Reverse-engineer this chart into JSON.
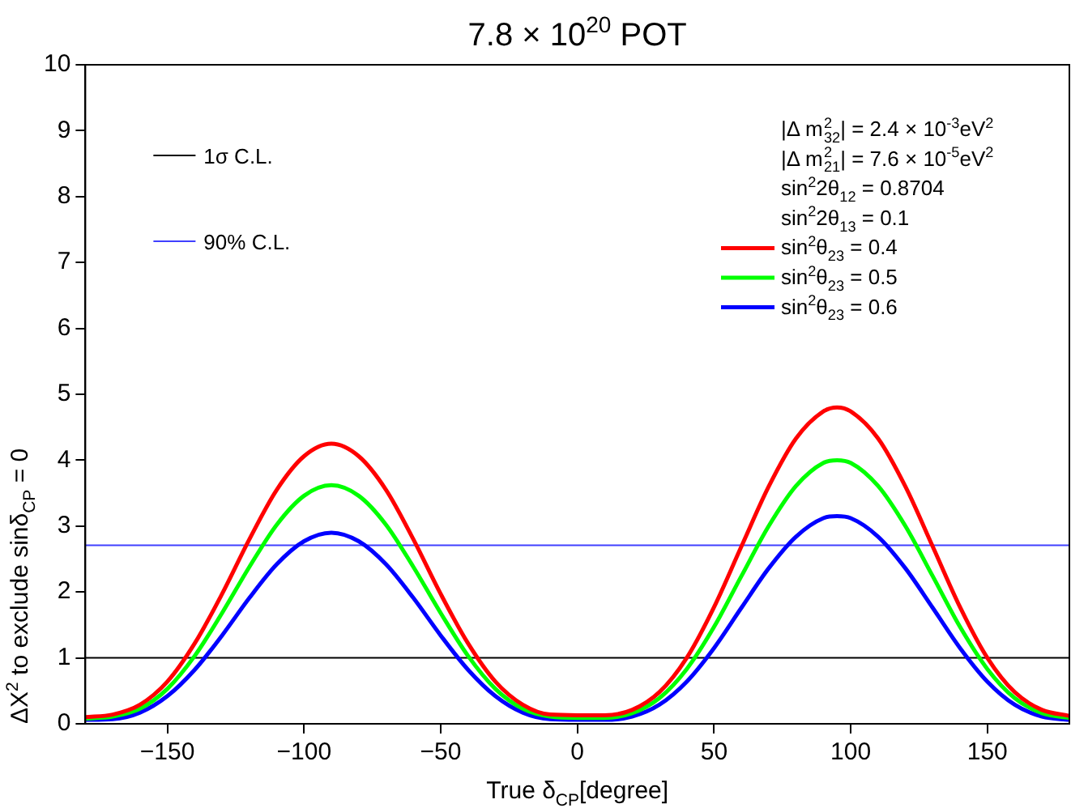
{
  "chart_data": {
    "type": "line",
    "title": "7.8 × 10$^{20}$ POT",
    "xlabel": "True δ$_{CP}$[degree]",
    "ylabel": "ΔΧ$^{2}$ to exclude sinδ$_{CP}$ = 0",
    "x": [
      -180,
      -170,
      -160,
      -150,
      -140,
      -130,
      -120,
      -110,
      -100,
      -90,
      -80,
      -70,
      -60,
      -50,
      -40,
      -30,
      -20,
      -10,
      0,
      10,
      20,
      30,
      40,
      50,
      60,
      70,
      80,
      90,
      95,
      100,
      110,
      120,
      130,
      140,
      150,
      160,
      170,
      180
    ],
    "series": [
      {
        "name": "sin$^{2}$θ$_{23}$ = 0.4",
        "color": "#ff0000",
        "values": [
          0.1,
          0.14,
          0.29,
          0.64,
          1.22,
          1.97,
          2.8,
          3.55,
          4.06,
          4.25,
          4.06,
          3.55,
          2.8,
          1.97,
          1.22,
          0.64,
          0.29,
          0.14,
          0.13,
          0.13,
          0.21,
          0.48,
          1.0,
          1.77,
          2.69,
          3.6,
          4.33,
          4.74,
          4.8,
          4.74,
          4.33,
          3.6,
          2.69,
          1.77,
          1.0,
          0.48,
          0.21,
          0.12
        ]
      },
      {
        "name": "sin$^{2}$θ$_{23}$ = 0.5",
        "color": "#00ff00",
        "values": [
          0.08,
          0.11,
          0.23,
          0.53,
          1.03,
          1.68,
          2.38,
          3.02,
          3.46,
          3.62,
          3.46,
          3.02,
          2.38,
          1.68,
          1.03,
          0.53,
          0.23,
          0.11,
          0.09,
          0.09,
          0.16,
          0.39,
          0.83,
          1.47,
          2.24,
          3.0,
          3.61,
          3.96,
          4.0,
          3.96,
          3.61,
          3.0,
          2.24,
          1.47,
          0.83,
          0.39,
          0.16,
          0.09
        ]
      },
      {
        "name": "sin$^{2}$θ$_{23}$ = 0.6",
        "color": "#0000ff",
        "values": [
          0.06,
          0.07,
          0.17,
          0.42,
          0.82,
          1.34,
          1.91,
          2.42,
          2.77,
          2.9,
          2.77,
          2.42,
          1.91,
          1.34,
          0.82,
          0.42,
          0.17,
          0.07,
          0.06,
          0.06,
          0.11,
          0.29,
          0.64,
          1.15,
          1.76,
          2.36,
          2.84,
          3.12,
          3.15,
          3.12,
          2.84,
          2.36,
          1.76,
          1.15,
          0.64,
          0.29,
          0.11,
          0.06
        ]
      }
    ],
    "xlim": [
      -180,
      180
    ],
    "xticks": [
      -150,
      -100,
      -50,
      0,
      50,
      100,
      150
    ],
    "ylim": [
      0,
      10
    ],
    "yticks": [
      0,
      1,
      2,
      3,
      4,
      5,
      6,
      7,
      8,
      9,
      10
    ],
    "ref_lines": [
      {
        "axis": "y",
        "value": 1,
        "label": "1σ C.L.",
        "color": "#000000"
      },
      {
        "axis": "y",
        "value": 2.71,
        "label": "90% C.L.",
        "color": "#4040ff"
      }
    ],
    "annotations": [
      "|Δ m$^{2}$$_{32}$| = 2.4 × 10$^{-3}$eV$^{2}$",
      "|Δ m$^{2}$$_{21}$| = 7.6 × 10$^{-5}$eV$^{2}$",
      "sin$^{2}$2θ$_{12}$ = 0.8704",
      "sin$^{2}$2θ$_{13}$ = 0.1"
    ],
    "legend": "top",
    "grid": false,
    "marker": "none",
    "line_style": "solid"
  }
}
